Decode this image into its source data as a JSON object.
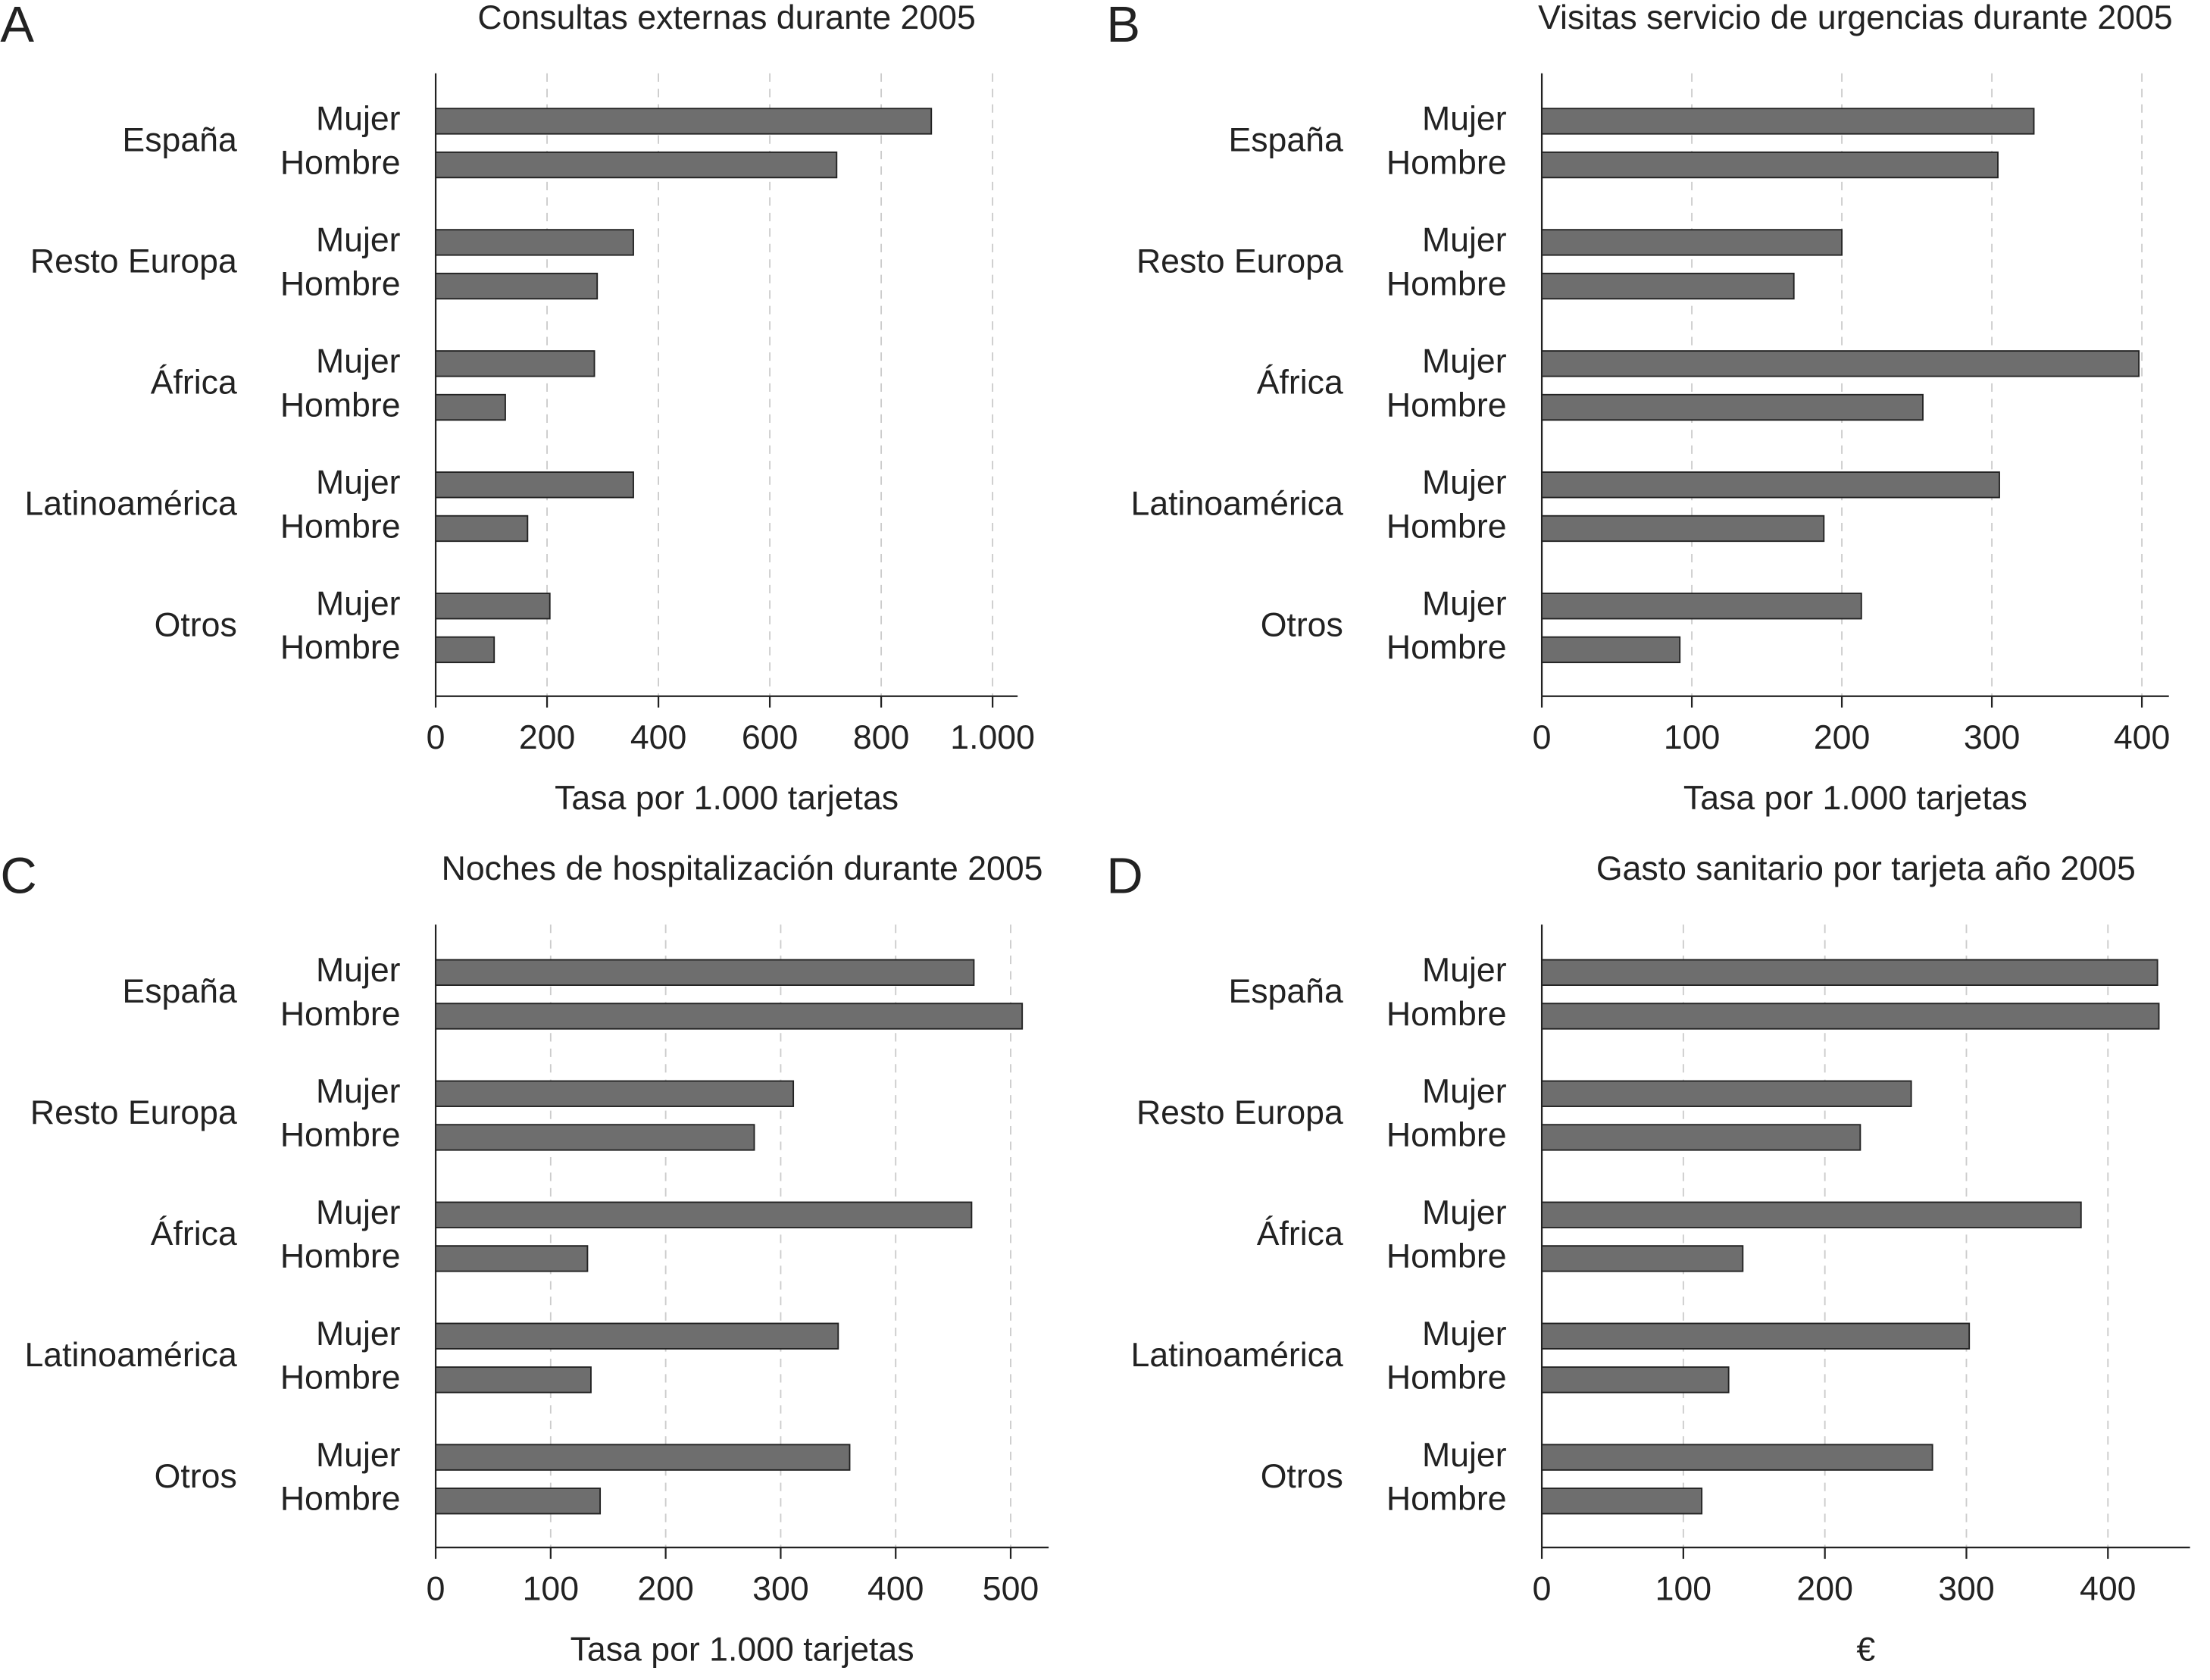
{
  "chart_data": [
    {
      "type": "bar",
      "panel": "A",
      "title": "Consultas externas durante 2005",
      "xlabel": "Tasa por 1.000 tarjetas",
      "categories": [
        "España",
        "Resto Europa",
        "África",
        "Latinoamérica",
        "Otros"
      ],
      "series": [
        {
          "name": "Mujer",
          "color": "#6e6e6e",
          "values": [
            890,
            355,
            285,
            355,
            205
          ]
        },
        {
          "name": "Hombre",
          "color": "#6e6e6e",
          "values": [
            720,
            290,
            125,
            165,
            105
          ]
        }
      ],
      "xlim": [
        0,
        1045
      ],
      "xticks": [
        0,
        200,
        400,
        600,
        800,
        {
          "value": 1000,
          "label": "1.000"
        }
      ],
      "grid": true
    },
    {
      "type": "bar",
      "panel": "B",
      "title": "Visitas servicio de urgencias durante 2005",
      "xlabel": "Tasa por 1.000 tarjetas",
      "categories": [
        "España",
        "Resto Europa",
        "África",
        "Latinoamérica",
        "Otros"
      ],
      "series": [
        {
          "name": "Mujer",
          "color": "#6e6e6e",
          "values": [
            328,
            200,
            398,
            305,
            213
          ]
        },
        {
          "name": "Hombre",
          "color": "#6e6e6e",
          "values": [
            304,
            168,
            254,
            188,
            92
          ]
        }
      ],
      "xlim": [
        0,
        418
      ],
      "xticks": [
        0,
        100,
        200,
        300,
        400
      ],
      "grid": true
    },
    {
      "type": "bar",
      "panel": "C",
      "title": "Noches de hospitalización durante 2005",
      "xlabel": "Tasa por 1.000 tarjetas",
      "categories": [
        "España",
        "Resto Europa",
        "África",
        "Latinoamérica",
        "Otros"
      ],
      "series": [
        {
          "name": "Mujer",
          "color": "#6e6e6e",
          "values": [
            468,
            311,
            466,
            350,
            360
          ]
        },
        {
          "name": "Hombre",
          "color": "#6e6e6e",
          "values": [
            510,
            277,
            132,
            135,
            143
          ]
        }
      ],
      "xlim": [
        0,
        533
      ],
      "xticks": [
        0,
        100,
        200,
        300,
        400,
        500
      ],
      "grid": true
    },
    {
      "type": "bar",
      "panel": "D",
      "title": "Gasto sanitario por tarjeta año 2005",
      "xlabel": "€",
      "categories": [
        "España",
        "Resto Europa",
        "África",
        "Latinoamérica",
        "Otros"
      ],
      "series": [
        {
          "name": "Mujer",
          "color": "#6e6e6e",
          "values": [
            435,
            261,
            381,
            302,
            276
          ]
        },
        {
          "name": "Hombre",
          "color": "#6e6e6e",
          "values": [
            436,
            225,
            142,
            132,
            113
          ]
        }
      ],
      "xlim": [
        0,
        458
      ],
      "xticks": [
        0,
        100,
        200,
        300,
        400
      ],
      "grid": true
    }
  ]
}
